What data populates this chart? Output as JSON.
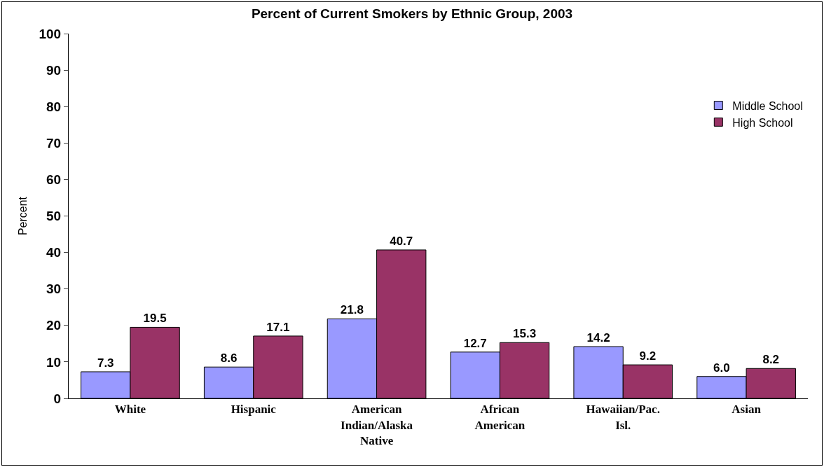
{
  "chart_data": {
    "type": "bar",
    "title": "Percent of Current Smokers by Ethnic Group, 2003",
    "ylabel": "Percent",
    "categories": [
      "White",
      "Hispanic",
      "American Indian/Alaska Native",
      "African American",
      "Hawaiian/Pac. Isl.",
      "Asian"
    ],
    "series": [
      {
        "name": "Middle School",
        "color": "#9999ff",
        "values": [
          7.3,
          8.6,
          21.8,
          12.7,
          14.2,
          6.0
        ],
        "value_labels": [
          "7.3",
          "8.6",
          "21.8",
          "12.7",
          "14.2",
          "6.0"
        ]
      },
      {
        "name": "High School",
        "color": "#993366",
        "values": [
          19.5,
          17.1,
          40.7,
          15.3,
          9.2,
          8.2
        ],
        "value_labels": [
          "19.5",
          "17.1",
          "40.7",
          "15.3",
          "9.2",
          "8.2"
        ]
      }
    ],
    "ylim": [
      0,
      100
    ],
    "yticks": [
      0,
      10,
      20,
      30,
      40,
      50,
      60,
      70,
      80,
      90,
      100
    ],
    "grid": false,
    "legend": "right"
  }
}
